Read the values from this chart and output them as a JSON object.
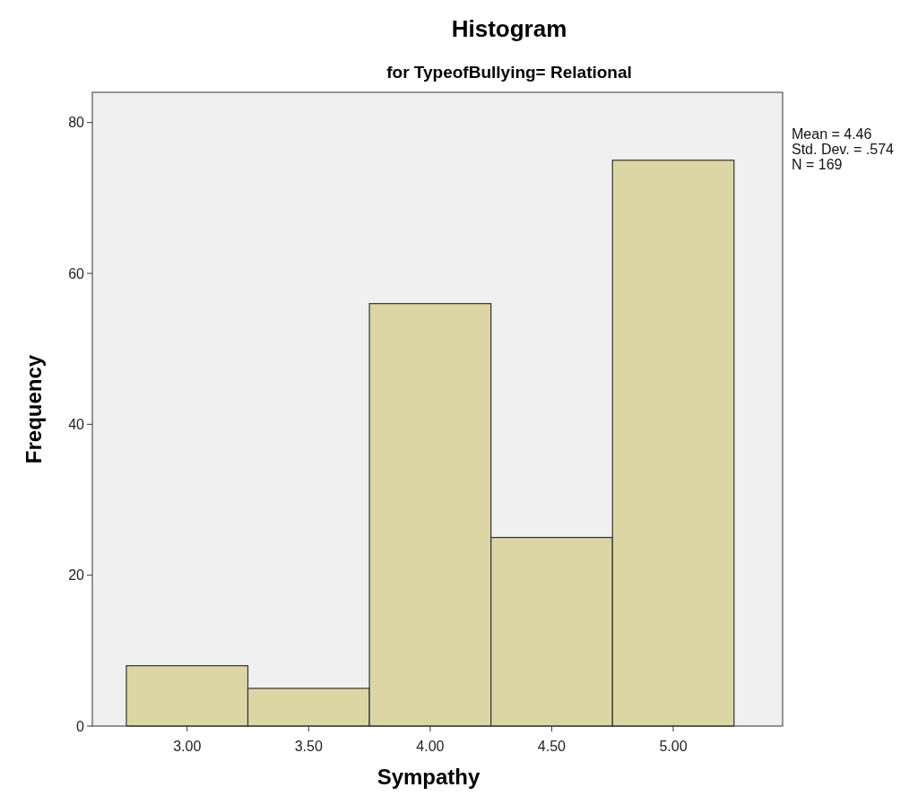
{
  "chart_data": {
    "type": "histogram",
    "title": "Histogram",
    "subtitle": "for TypeofBullying= Relational",
    "xlabel": "Sympathy",
    "ylabel": "Frequency",
    "bins": [
      2.75,
      3.25,
      3.75,
      4.25,
      4.75,
      5.25
    ],
    "values": [
      8,
      5,
      56,
      25,
      75
    ],
    "color": "#dcd6a5",
    "xlim": [
      2.61,
      5.45
    ],
    "ylim": [
      0,
      84
    ],
    "xticks": [
      {
        "value": 3,
        "label": "3.00"
      },
      {
        "value": 3.5,
        "label": "3.50"
      },
      {
        "value": 4,
        "label": "4.00"
      },
      {
        "value": 4.5,
        "label": "4.50"
      },
      {
        "value": 5,
        "label": "5.00"
      }
    ],
    "yticks": [
      0,
      20,
      40,
      60,
      80
    ],
    "annotations": [
      "Mean = 4.46",
      "Std. Dev. = .574",
      "N = 169"
    ]
  }
}
